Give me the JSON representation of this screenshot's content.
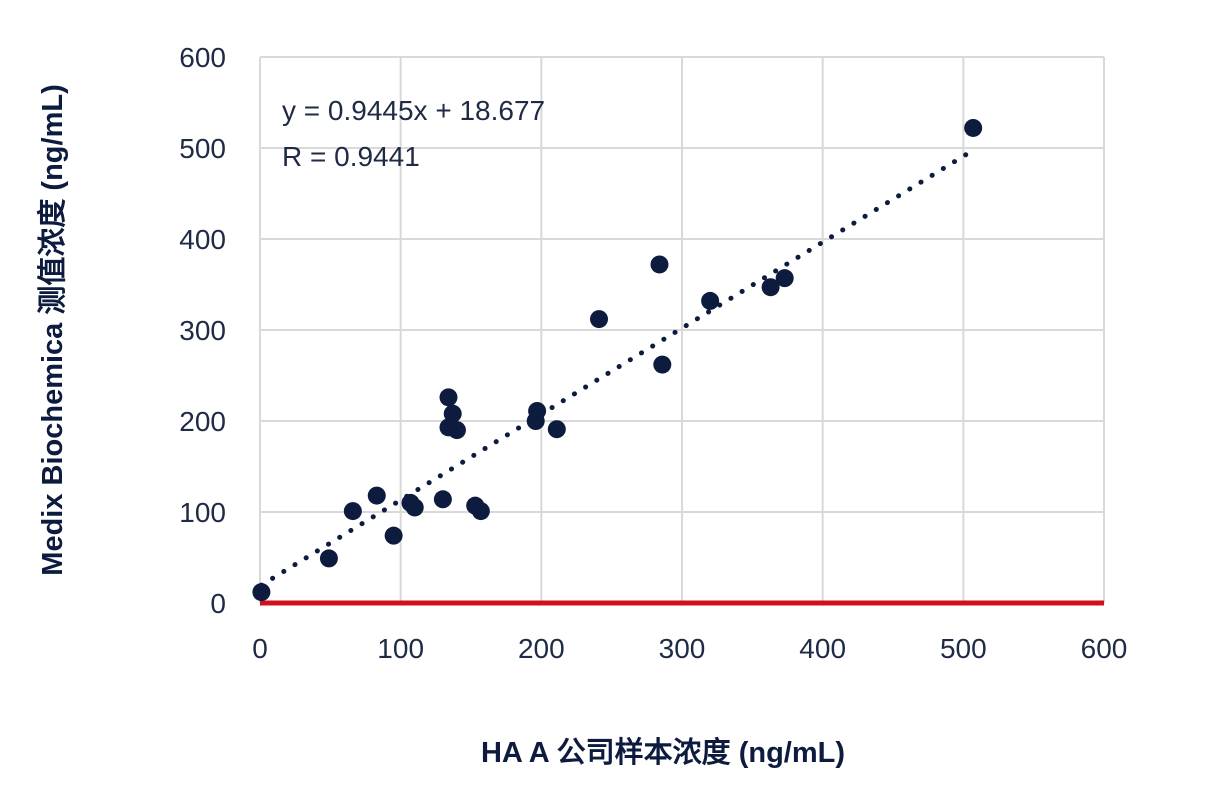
{
  "chart_data": {
    "type": "scatter",
    "xlabel": "HA A 公司样本浓度 (ng/mL)",
    "ylabel": "Medix Biochemica 测值浓度 (ng/mL)",
    "xlim": [
      0,
      600
    ],
    "ylim": [
      0,
      600
    ],
    "xticks": [
      "0",
      "100",
      "200",
      "300",
      "400",
      "500",
      "600"
    ],
    "yticks": [
      "0",
      "100",
      "200",
      "300",
      "400",
      "500",
      "600"
    ],
    "grid": true,
    "legend": "none",
    "equation": "y = 0.9445x + 18.677",
    "r_value": "R = 0.9441",
    "trendline": {
      "slope": 0.9445,
      "intercept": 18.677,
      "style": "dotted"
    },
    "colors": {
      "points": "#0d1b3e",
      "trendline": "#0d1b3e",
      "x_axis": "#d0111b",
      "grid": "#d9d9d9",
      "text": "#1f2a44"
    },
    "points": [
      {
        "x": 1,
        "y": 12
      },
      {
        "x": 49,
        "y": 49
      },
      {
        "x": 66,
        "y": 101
      },
      {
        "x": 83,
        "y": 118
      },
      {
        "x": 95,
        "y": 74
      },
      {
        "x": 107,
        "y": 110
      },
      {
        "x": 110,
        "y": 105
      },
      {
        "x": 130,
        "y": 114
      },
      {
        "x": 134,
        "y": 226
      },
      {
        "x": 134,
        "y": 193
      },
      {
        "x": 137,
        "y": 208
      },
      {
        "x": 140,
        "y": 190
      },
      {
        "x": 153,
        "y": 107
      },
      {
        "x": 157,
        "y": 101
      },
      {
        "x": 196,
        "y": 200
      },
      {
        "x": 197,
        "y": 211
      },
      {
        "x": 211,
        "y": 191
      },
      {
        "x": 241,
        "y": 312
      },
      {
        "x": 284,
        "y": 372
      },
      {
        "x": 286,
        "y": 262
      },
      {
        "x": 320,
        "y": 332
      },
      {
        "x": 363,
        "y": 347
      },
      {
        "x": 373,
        "y": 357
      },
      {
        "x": 507,
        "y": 522
      }
    ]
  }
}
